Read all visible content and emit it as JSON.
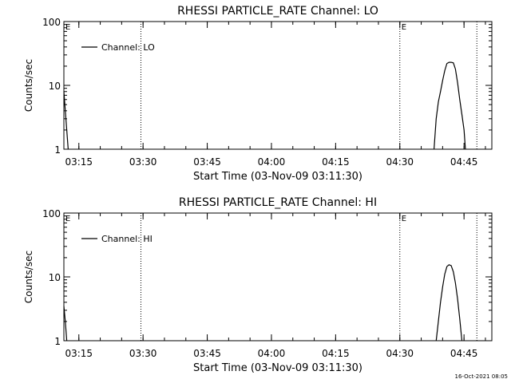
{
  "footer_timestamp": "16-Oct-2021 08:05",
  "chart_data": [
    {
      "type": "line",
      "title": "RHESSI PARTICLE_RATE Channel: LO",
      "xlabel": "Start Time (03-Nov-09 03:11:30)",
      "ylabel": "Counts/sec",
      "xlim": [
        "03:11:30",
        "04:51:30"
      ],
      "ylim": [
        1,
        100
      ],
      "yscale": "log",
      "x_ticks": [
        "03:15",
        "03:30",
        "03:45",
        "04:00",
        "04:15",
        "04:30",
        "04:45"
      ],
      "y_ticks": [
        "1",
        "10",
        "100"
      ],
      "legend": {
        "label": "Channel: LO",
        "placement": "top-left"
      },
      "markers": [
        {
          "time": "03:11:30",
          "label": "E"
        },
        {
          "time": "03:29:30",
          "label": ""
        },
        {
          "time": "04:30:00",
          "label": "E"
        },
        {
          "time": "04:48:00",
          "label": ""
        }
      ],
      "series": [
        {
          "name": "Channel: LO",
          "segments": [
            [
              [
                "03:11:30",
                8.0
              ],
              [
                "03:11:50",
                4.0
              ],
              [
                "03:12:10",
                2.0
              ],
              [
                "03:12:30",
                1.0
              ]
            ],
            [
              [
                "04:38:00",
                1.0
              ],
              [
                "04:38:30",
                3.0
              ],
              [
                "04:39:00",
                5.5
              ],
              [
                "04:39:30",
                8.0
              ],
              [
                "04:40:00",
                12.0
              ],
              [
                "04:40:30",
                17.0
              ],
              [
                "04:41:00",
                22.0
              ],
              [
                "04:41:30",
                23.0
              ],
              [
                "04:42:00",
                23.0
              ],
              [
                "04:42:30",
                22.5
              ],
              [
                "04:43:00",
                18.0
              ],
              [
                "04:43:30",
                11.0
              ],
              [
                "04:44:00",
                6.0
              ],
              [
                "04:44:30",
                3.5
              ],
              [
                "04:45:00",
                2.0
              ],
              [
                "04:45:20",
                1.0
              ]
            ]
          ]
        }
      ]
    },
    {
      "type": "line",
      "title": "RHESSI PARTICLE_RATE Channel: HI",
      "xlabel": "Start Time (03-Nov-09 03:11:30)",
      "ylabel": "Counts/sec",
      "xlim": [
        "03:11:30",
        "04:51:30"
      ],
      "ylim": [
        1,
        100
      ],
      "yscale": "log",
      "x_ticks": [
        "03:15",
        "03:30",
        "03:45",
        "04:00",
        "04:15",
        "04:30",
        "04:45"
      ],
      "y_ticks": [
        "1",
        "10",
        "100"
      ],
      "legend": {
        "label": "Channel: HI",
        "placement": "top-left"
      },
      "markers": [
        {
          "time": "03:11:30",
          "label": "E"
        },
        {
          "time": "03:29:30",
          "label": ""
        },
        {
          "time": "04:30:00",
          "label": "E"
        },
        {
          "time": "04:48:00",
          "label": ""
        }
      ],
      "series": [
        {
          "name": "Channel: HI",
          "segments": [
            [
              [
                "03:11:30",
                3.5
              ],
              [
                "03:11:50",
                2.0
              ],
              [
                "03:12:10",
                1.0
              ]
            ],
            [
              [
                "04:38:30",
                1.0
              ],
              [
                "04:39:00",
                2.0
              ],
              [
                "04:39:30",
                4.0
              ],
              [
                "04:40:00",
                7.0
              ],
              [
                "04:40:30",
                11.0
              ],
              [
                "04:41:00",
                14.5
              ],
              [
                "04:41:30",
                15.5
              ],
              [
                "04:42:00",
                15.0
              ],
              [
                "04:42:30",
                12.0
              ],
              [
                "04:43:00",
                8.0
              ],
              [
                "04:43:30",
                4.5
              ],
              [
                "04:44:00",
                2.2
              ],
              [
                "04:44:30",
                1.0
              ]
            ]
          ]
        }
      ]
    }
  ]
}
